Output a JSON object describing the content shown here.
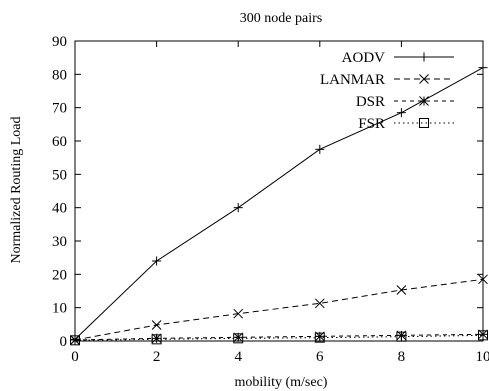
{
  "chart_data": {
    "type": "line",
    "title": "300 node pairs",
    "xlabel": "mobility (m/sec)",
    "ylabel": "Normalized Routing Load",
    "xlim": [
      0,
      10
    ],
    "ylim": [
      0,
      90
    ],
    "xticks": [
      "0",
      "2",
      "4",
      "6",
      "8",
      "10"
    ],
    "yticks": [
      "0",
      "10",
      "20",
      "30",
      "40",
      "50",
      "60",
      "70",
      "80",
      "90"
    ],
    "grid": false,
    "legend_position": "top-right",
    "x": [
      0,
      2,
      4,
      6,
      8,
      10
    ],
    "series": [
      {
        "name": "AODV",
        "values": [
          0.5,
          24,
          40,
          57.5,
          68.5,
          82
        ],
        "marker": "plus",
        "line": "solid"
      },
      {
        "name": "LANMAR",
        "values": [
          0.3,
          4.8,
          8.2,
          11.3,
          15.3,
          18.5
        ],
        "marker": "cross",
        "line": "dashed"
      },
      {
        "name": "DSR",
        "values": [
          0.3,
          0.8,
          1.1,
          1.4,
          1.7,
          2.0
        ],
        "marker": "star",
        "line": "short-dashed"
      },
      {
        "name": "FSR",
        "values": [
          0.2,
          0.5,
          0.8,
          1.0,
          1.3,
          1.7
        ],
        "marker": "square",
        "line": "dotted"
      }
    ]
  }
}
